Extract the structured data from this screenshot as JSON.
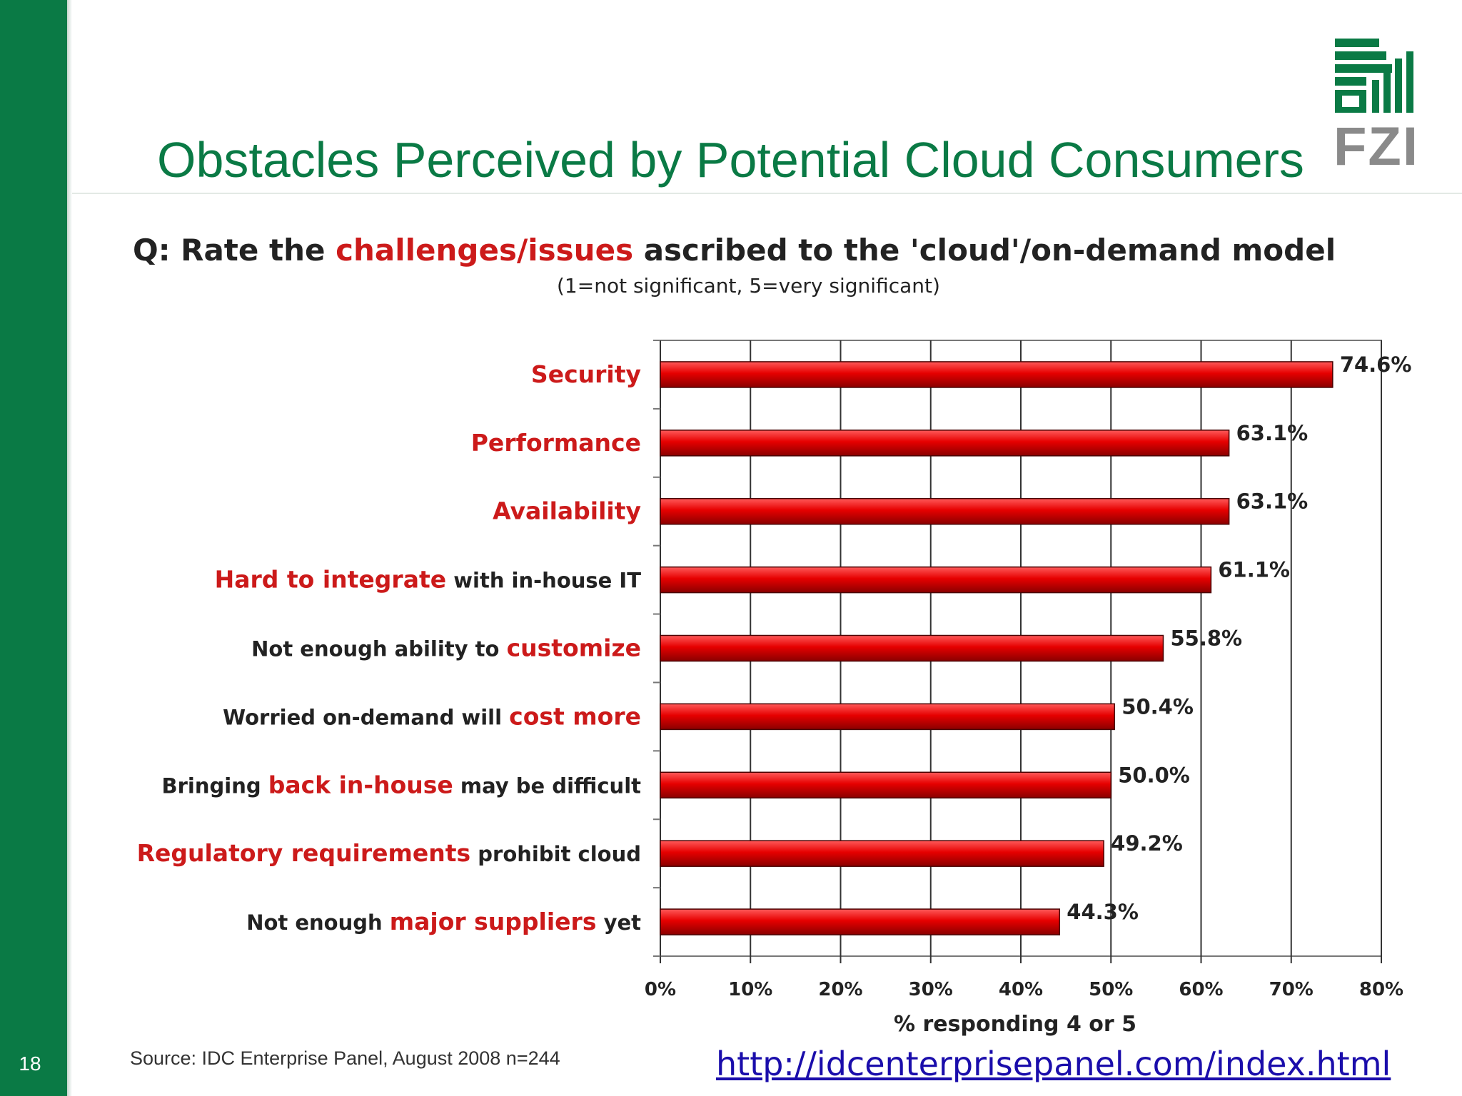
{
  "slide": {
    "number": "18",
    "title": "Obstacles Perceived by Potential Cloud Consumers",
    "logo_text": "FZI",
    "source_note": "Source: IDC Enterprise Panel, August 2008  n=244",
    "link": "http://idcenterprisepanel.com/index.html"
  },
  "question": {
    "prefix": "Q: Rate the ",
    "highlight": "challenges/issues",
    "suffix": " ascribed to the 'cloud'/on-demand model",
    "scale_note": "(1=not significant, 5=very significant)"
  },
  "colors": {
    "brand_green": "#0a7a45",
    "highlight_red": "#cc1a1a",
    "bar_red": "#e00000",
    "label_dark": "#222222"
  },
  "chart_data": {
    "type": "bar",
    "orientation": "horizontal",
    "categories": [
      [
        {
          "text": "Security",
          "hl": true
        }
      ],
      [
        {
          "text": "Performance",
          "hl": true
        }
      ],
      [
        {
          "text": "Availability",
          "hl": true
        }
      ],
      [
        {
          "text": "Hard to integrate",
          "hl": true
        },
        {
          "text": " with in-house IT",
          "hl": false
        }
      ],
      [
        {
          "text": "Not enough ability to ",
          "hl": false
        },
        {
          "text": "customize",
          "hl": true
        }
      ],
      [
        {
          "text": "Worried on-demand will ",
          "hl": false
        },
        {
          "text": "cost more",
          "hl": true
        }
      ],
      [
        {
          "text": "Bringing ",
          "hl": false
        },
        {
          "text": "back in-house",
          "hl": true
        },
        {
          "text": " may be difficult",
          "hl": false
        }
      ],
      [
        {
          "text": "Regulatory requirements",
          "hl": true
        },
        {
          "text": " prohibit cloud",
          "hl": false
        }
      ],
      [
        {
          "text": "Not enough ",
          "hl": false
        },
        {
          "text": "major suppliers",
          "hl": true
        },
        {
          "text": " yet",
          "hl": false
        }
      ]
    ],
    "values": [
      74.6,
      63.1,
      63.1,
      61.1,
      55.8,
      50.4,
      50.0,
      49.2,
      44.3
    ],
    "value_labels": [
      "74.6%",
      "63.1%",
      "63.1%",
      "61.1%",
      "55.8%",
      "50.4%",
      "50.0%",
      "49.2%",
      "44.3%"
    ],
    "xlim": [
      0,
      80
    ],
    "xticks": [
      "0%",
      "10%",
      "20%",
      "30%",
      "40%",
      "50%",
      "60%",
      "70%",
      "80%"
    ],
    "xlabel": "% responding 4 or 5",
    "grid": true
  }
}
